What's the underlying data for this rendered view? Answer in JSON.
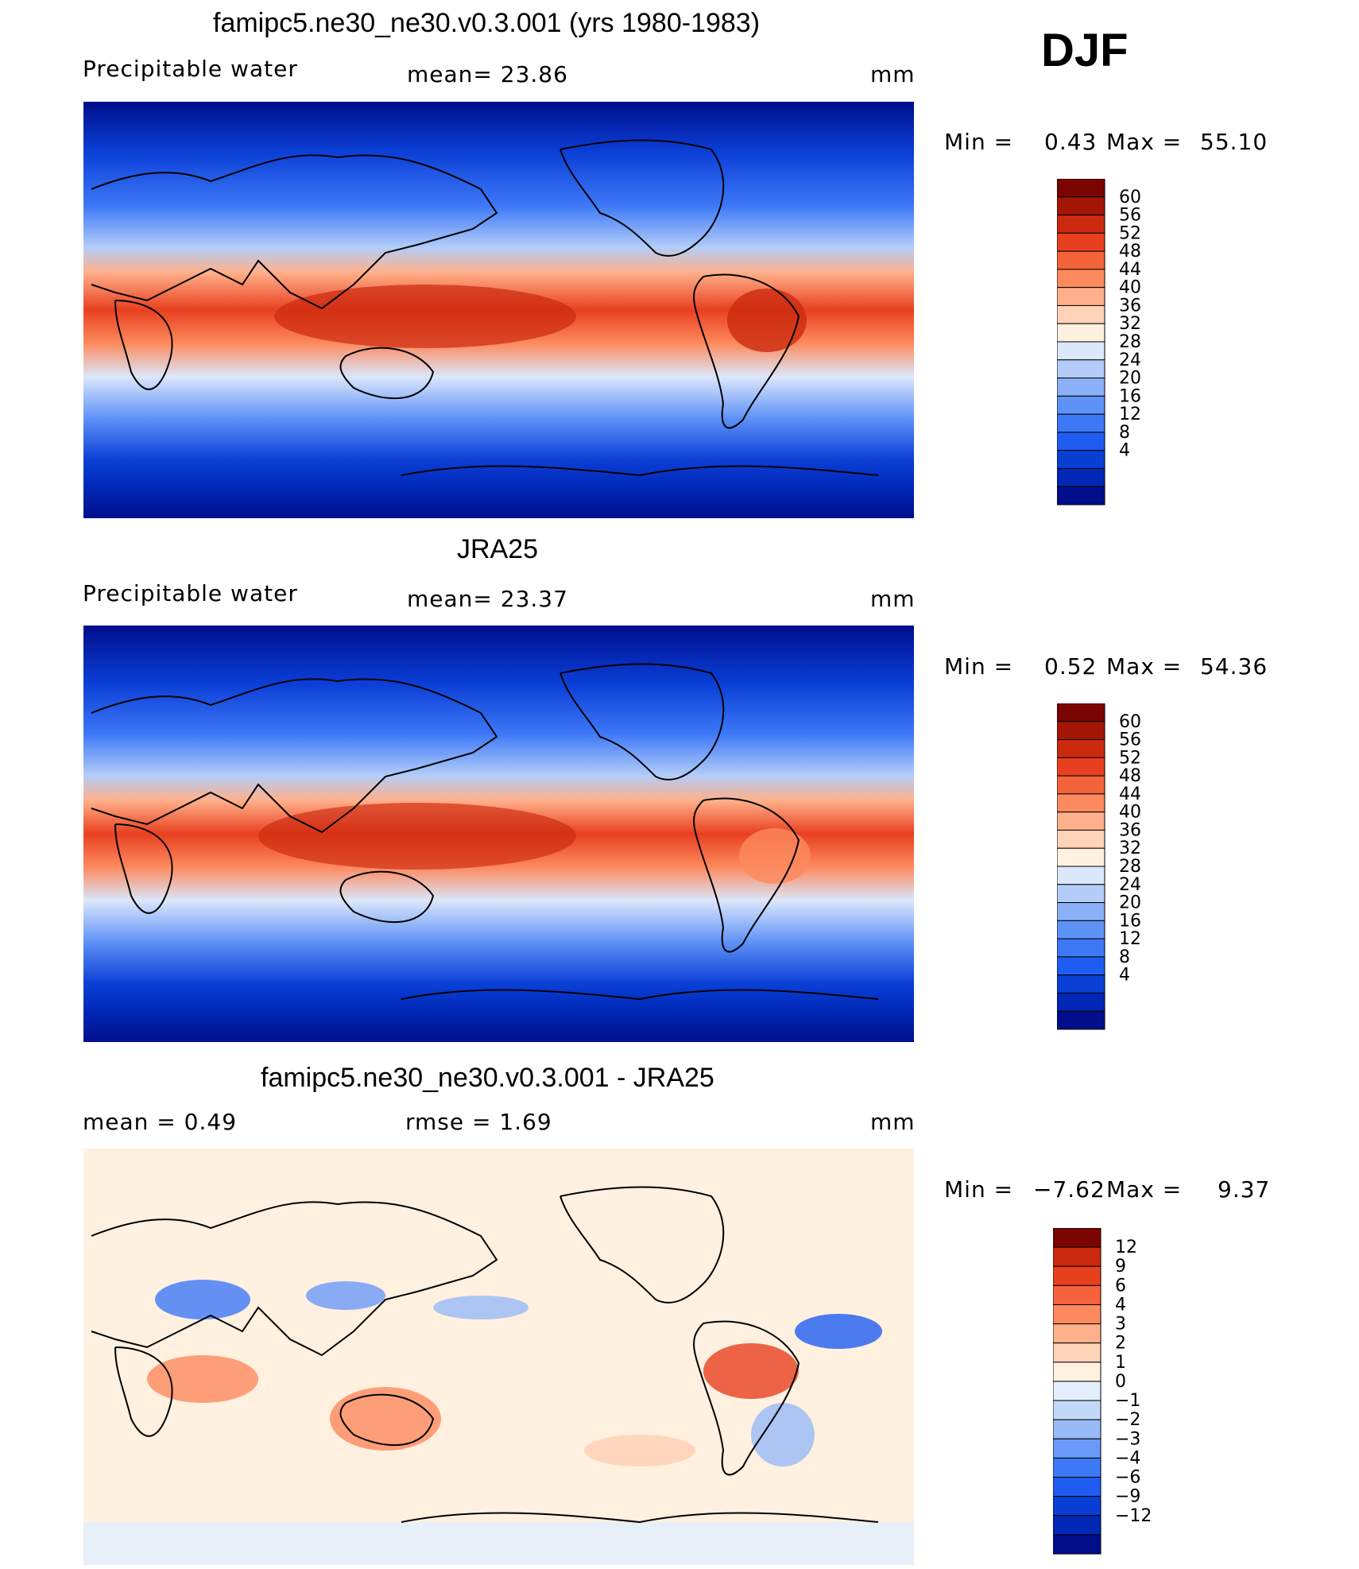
{
  "season": "DJF",
  "colors": {
    "pw": [
      "#000e8c",
      "#0027b5",
      "#0a3fd6",
      "#1f5cf2",
      "#3d78f7",
      "#5f92f7",
      "#8ab0f7",
      "#b3cdf8",
      "#dbe7fb",
      "#fff0e0",
      "#ffd3b8",
      "#ffb08a",
      "#fd8a5e",
      "#f5633a",
      "#e8401f",
      "#cc2a0e",
      "#a31505",
      "#7a0500"
    ],
    "diff": [
      "#000e8c",
      "#0027b5",
      "#0a3fd6",
      "#1f5cf2",
      "#3d78f7",
      "#6a9af7",
      "#98baf7",
      "#c4d9fa",
      "#e4eefc",
      "#fff0e0",
      "#ffd3b8",
      "#ffb08a",
      "#fd8a5e",
      "#f5633a",
      "#e8401f",
      "#cc2a0e",
      "#7a0500"
    ]
  },
  "panels": [
    {
      "title": "famipc5.ne30_ne30.v0.3.001 (yrs 1980-1983)",
      "left_label": "Precipitable  water",
      "center_label": "mean=   23.86",
      "units": "mm",
      "min_label": "Min  =",
      "min_value": "0.43",
      "max_label": "Max  =",
      "max_value": "55.10",
      "colorbar_levels": [
        "60",
        "56",
        "52",
        "48",
        "44",
        "40",
        "36",
        "32",
        "28",
        "24",
        "20",
        "16",
        "12",
        "8",
        "4"
      ]
    },
    {
      "title": "JRA25",
      "left_label": "Precipitable  water",
      "center_label": "mean=   23.37",
      "units": "mm",
      "min_label": "Min  =",
      "min_value": "0.52",
      "max_label": "Max  =",
      "max_value": "54.36",
      "colorbar_levels": [
        "60",
        "56",
        "52",
        "48",
        "44",
        "40",
        "36",
        "32",
        "28",
        "24",
        "20",
        "16",
        "12",
        "8",
        "4"
      ]
    },
    {
      "title": "famipc5.ne30_ne30.v0.3.001 - JRA25",
      "left_label": "mean  =     0.49",
      "center_label": "rmse  =     1.69",
      "units": "mm",
      "min_label": "Min  =",
      "min_value": "−7.62",
      "max_label": "Max  =",
      "max_value": "9.37",
      "colorbar_levels": [
        "12",
        "9",
        "6",
        "4",
        "3",
        "2",
        "1",
        "0",
        "−1",
        "−2",
        "−3",
        "−4",
        "−6",
        "−9",
        "−12"
      ]
    }
  ]
}
